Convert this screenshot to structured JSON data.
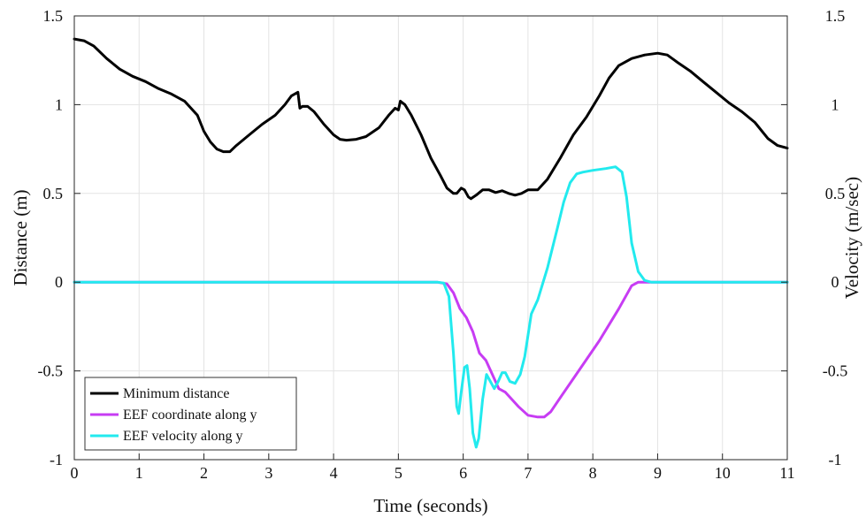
{
  "chart_data": {
    "type": "line",
    "xlabel": "Time (seconds)",
    "ylabel_left": "Distance (m)",
    "ylabel_right": "Velocity (m/sec)",
    "xlim": [
      0,
      11
    ],
    "ylim_left": [
      -1,
      1.5
    ],
    "ylim_right": [
      -1,
      1.5
    ],
    "x_ticks": [
      "0",
      "1",
      "2",
      "3",
      "4",
      "5",
      "6",
      "7",
      "8",
      "9",
      "10",
      "11"
    ],
    "y_ticks_left": [
      "-1",
      "-0.5",
      "0",
      "0.5",
      "1",
      "1.5"
    ],
    "y_ticks_right": [
      "-1",
      "-0.5",
      "0",
      "0.5",
      "1",
      "1.5"
    ],
    "grid": true,
    "legend_position": "bottom-left",
    "series": [
      {
        "name": "Minimum distance",
        "color": "#000000",
        "axis": "left",
        "points": [
          [
            0,
            1.37
          ],
          [
            0.15,
            1.36
          ],
          [
            0.3,
            1.33
          ],
          [
            0.5,
            1.26
          ],
          [
            0.7,
            1.2
          ],
          [
            0.9,
            1.16
          ],
          [
            1.1,
            1.13
          ],
          [
            1.3,
            1.09
          ],
          [
            1.5,
            1.06
          ],
          [
            1.7,
            1.02
          ],
          [
            1.9,
            0.94
          ],
          [
            2.0,
            0.85
          ],
          [
            2.1,
            0.79
          ],
          [
            2.2,
            0.75
          ],
          [
            2.3,
            0.735
          ],
          [
            2.4,
            0.735
          ],
          [
            2.5,
            0.77
          ],
          [
            2.7,
            0.83
          ],
          [
            2.9,
            0.89
          ],
          [
            3.1,
            0.94
          ],
          [
            3.25,
            1.0
          ],
          [
            3.35,
            1.05
          ],
          [
            3.45,
            1.07
          ],
          [
            3.48,
            0.98
          ],
          [
            3.52,
            0.99
          ],
          [
            3.6,
            0.99
          ],
          [
            3.7,
            0.96
          ],
          [
            3.85,
            0.89
          ],
          [
            4.0,
            0.83
          ],
          [
            4.1,
            0.805
          ],
          [
            4.2,
            0.8
          ],
          [
            4.35,
            0.805
          ],
          [
            4.5,
            0.82
          ],
          [
            4.7,
            0.87
          ],
          [
            4.85,
            0.94
          ],
          [
            4.95,
            0.98
          ],
          [
            5.0,
            0.97
          ],
          [
            5.03,
            1.02
          ],
          [
            5.1,
            1.0
          ],
          [
            5.2,
            0.94
          ],
          [
            5.35,
            0.83
          ],
          [
            5.5,
            0.7
          ],
          [
            5.65,
            0.6
          ],
          [
            5.75,
            0.53
          ],
          [
            5.85,
            0.5
          ],
          [
            5.9,
            0.5
          ],
          [
            5.97,
            0.53
          ],
          [
            6.02,
            0.52
          ],
          [
            6.08,
            0.48
          ],
          [
            6.12,
            0.47
          ],
          [
            6.2,
            0.49
          ],
          [
            6.3,
            0.52
          ],
          [
            6.4,
            0.52
          ],
          [
            6.5,
            0.505
          ],
          [
            6.6,
            0.515
          ],
          [
            6.7,
            0.5
          ],
          [
            6.8,
            0.49
          ],
          [
            6.9,
            0.5
          ],
          [
            7.0,
            0.52
          ],
          [
            7.15,
            0.52
          ],
          [
            7.3,
            0.58
          ],
          [
            7.5,
            0.7
          ],
          [
            7.7,
            0.83
          ],
          [
            7.9,
            0.93
          ],
          [
            8.1,
            1.05
          ],
          [
            8.25,
            1.15
          ],
          [
            8.4,
            1.22
          ],
          [
            8.6,
            1.26
          ],
          [
            8.8,
            1.28
          ],
          [
            9.0,
            1.29
          ],
          [
            9.15,
            1.28
          ],
          [
            9.3,
            1.24
          ],
          [
            9.5,
            1.19
          ],
          [
            9.7,
            1.13
          ],
          [
            9.9,
            1.07
          ],
          [
            10.1,
            1.01
          ],
          [
            10.3,
            0.96
          ],
          [
            10.5,
            0.9
          ],
          [
            10.7,
            0.81
          ],
          [
            10.85,
            0.77
          ],
          [
            11.0,
            0.755
          ]
        ]
      },
      {
        "name": "EEF coordinate along y",
        "color": "#c73cf3",
        "axis": "left",
        "points": [
          [
            0,
            0
          ],
          [
            5.6,
            0
          ],
          [
            5.75,
            -0.01
          ],
          [
            5.85,
            -0.06
          ],
          [
            5.95,
            -0.15
          ],
          [
            6.05,
            -0.2
          ],
          [
            6.15,
            -0.28
          ],
          [
            6.25,
            -0.4
          ],
          [
            6.35,
            -0.44
          ],
          [
            6.45,
            -0.52
          ],
          [
            6.55,
            -0.6
          ],
          [
            6.65,
            -0.62
          ],
          [
            6.75,
            -0.66
          ],
          [
            6.85,
            -0.7
          ],
          [
            7.0,
            -0.75
          ],
          [
            7.15,
            -0.76
          ],
          [
            7.25,
            -0.76
          ],
          [
            7.35,
            -0.73
          ],
          [
            7.5,
            -0.65
          ],
          [
            7.8,
            -0.49
          ],
          [
            8.1,
            -0.33
          ],
          [
            8.4,
            -0.15
          ],
          [
            8.6,
            -0.02
          ],
          [
            8.7,
            0
          ],
          [
            11.0,
            0
          ]
        ]
      },
      {
        "name": "EEF velocity along y",
        "color": "#22eaee",
        "axis": "right",
        "points": [
          [
            0,
            0
          ],
          [
            5.6,
            0
          ],
          [
            5.7,
            -0.005
          ],
          [
            5.78,
            -0.08
          ],
          [
            5.85,
            -0.4
          ],
          [
            5.9,
            -0.7
          ],
          [
            5.93,
            -0.74
          ],
          [
            5.97,
            -0.62
          ],
          [
            6.02,
            -0.48
          ],
          [
            6.06,
            -0.47
          ],
          [
            6.1,
            -0.6
          ],
          [
            6.15,
            -0.85
          ],
          [
            6.2,
            -0.93
          ],
          [
            6.24,
            -0.88
          ],
          [
            6.3,
            -0.66
          ],
          [
            6.36,
            -0.52
          ],
          [
            6.42,
            -0.56
          ],
          [
            6.48,
            -0.6
          ],
          [
            6.54,
            -0.56
          ],
          [
            6.6,
            -0.51
          ],
          [
            6.65,
            -0.51
          ],
          [
            6.72,
            -0.56
          ],
          [
            6.8,
            -0.57
          ],
          [
            6.88,
            -0.52
          ],
          [
            6.95,
            -0.42
          ],
          [
            7.0,
            -0.3
          ],
          [
            7.05,
            -0.18
          ],
          [
            7.15,
            -0.1
          ],
          [
            7.3,
            0.08
          ],
          [
            7.45,
            0.3
          ],
          [
            7.55,
            0.45
          ],
          [
            7.65,
            0.56
          ],
          [
            7.75,
            0.61
          ],
          [
            7.85,
            0.62
          ],
          [
            8.0,
            0.63
          ],
          [
            8.2,
            0.64
          ],
          [
            8.35,
            0.65
          ],
          [
            8.45,
            0.62
          ],
          [
            8.52,
            0.48
          ],
          [
            8.6,
            0.22
          ],
          [
            8.7,
            0.06
          ],
          [
            8.8,
            0.01
          ],
          [
            8.9,
            0
          ],
          [
            11.0,
            0
          ]
        ]
      }
    ]
  }
}
